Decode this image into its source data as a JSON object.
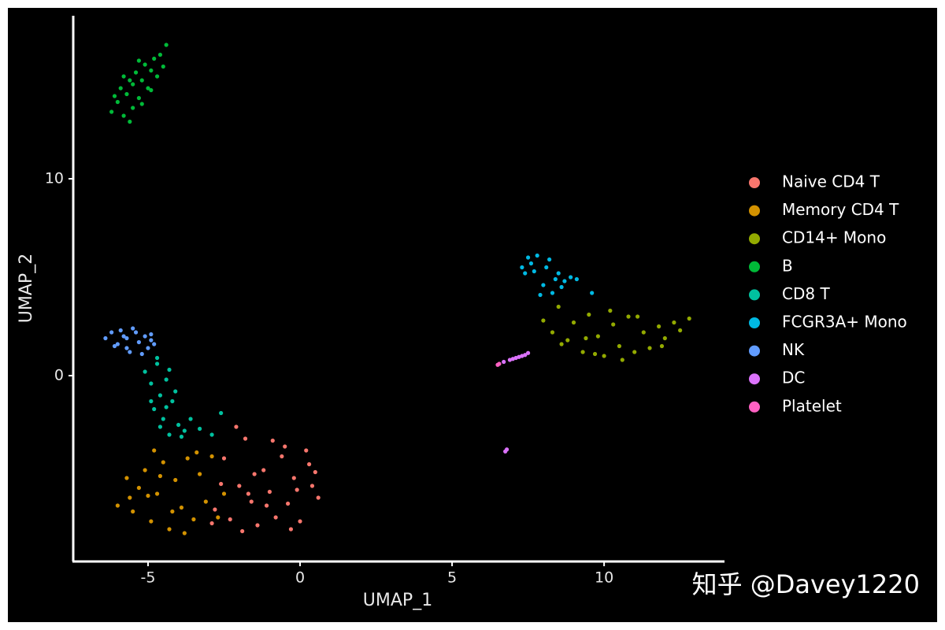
{
  "chart_data": {
    "type": "scatter",
    "x_label": "UMAP_1",
    "y_label": "UMAP_2",
    "xlim": [
      -7.46,
      13.96
    ],
    "ylim": [
      -9.44,
      18.28
    ],
    "xticks": [
      -5,
      0,
      5,
      10
    ],
    "yticks": [
      0,
      10
    ],
    "grid": false,
    "legend": "right",
    "watermark": "知乎 @Davey1220",
    "series": [
      {
        "name": "Naive CD4 T",
        "color": "#F8766D",
        "x": [
          -2.8,
          -2.5,
          -2.3,
          -2.0,
          -1.8,
          -1.6,
          -1.4,
          -1.2,
          -1.0,
          -0.8,
          -0.6,
          -0.4,
          -0.2,
          0.0,
          0.2,
          0.4,
          0.6,
          -2.6,
          -2.1,
          -1.5,
          -0.9,
          -0.3,
          0.3,
          -1.9,
          -1.1,
          -0.5,
          0.5,
          -2.9,
          -1.7,
          -0.1
        ],
        "y": [
          -6.8,
          -4.2,
          -7.3,
          -5.6,
          -3.2,
          -6.4,
          -7.6,
          -4.8,
          -5.9,
          -7.2,
          -4.1,
          -6.5,
          -5.2,
          -7.4,
          -3.8,
          -5.6,
          -6.2,
          -5.5,
          -2.6,
          -5.0,
          -3.3,
          -7.8,
          -4.5,
          -7.9,
          -6.6,
          -3.6,
          -4.9,
          -7.5,
          -6.0,
          -5.8
        ]
      },
      {
        "name": "Memory CD4 T",
        "color": "#D39200",
        "x": [
          -6.0,
          -5.7,
          -5.5,
          -5.3,
          -5.1,
          -4.9,
          -4.7,
          -4.5,
          -4.3,
          -4.1,
          -3.9,
          -3.7,
          -3.5,
          -3.3,
          -3.1,
          -2.9,
          -2.7,
          -5.6,
          -5.0,
          -4.6,
          -4.2,
          -3.8,
          -3.4,
          -2.5,
          -4.8
        ],
        "y": [
          -6.6,
          -5.2,
          -6.9,
          -5.7,
          -4.8,
          -7.4,
          -6.0,
          -4.4,
          -7.8,
          -5.3,
          -6.7,
          -4.2,
          -7.3,
          -5.0,
          -6.4,
          -4.1,
          -7.2,
          -6.2,
          -6.1,
          -5.1,
          -6.9,
          -8.0,
          -3.9,
          -6.0,
          -3.8
        ]
      },
      {
        "name": "CD14+ Mono",
        "color": "#93AA00",
        "x": [
          8.0,
          8.3,
          8.5,
          8.8,
          9.0,
          9.3,
          9.5,
          9.8,
          10.0,
          10.3,
          10.5,
          10.8,
          11.0,
          11.3,
          11.5,
          11.8,
          12.0,
          12.3,
          12.5,
          12.8,
          8.6,
          9.4,
          10.2,
          11.1,
          11.9,
          9.7,
          10.6
        ],
        "y": [
          2.8,
          2.2,
          3.5,
          1.8,
          2.7,
          1.2,
          3.1,
          2.0,
          1.0,
          2.6,
          1.5,
          3.0,
          1.2,
          2.2,
          1.4,
          2.5,
          1.9,
          2.7,
          2.3,
          2.9,
          1.6,
          1.9,
          3.3,
          3.0,
          1.5,
          1.1,
          0.8
        ]
      },
      {
        "name": "B",
        "color": "#00BA38",
        "x": [
          -6.2,
          -6.0,
          -5.9,
          -5.8,
          -5.7,
          -5.6,
          -5.5,
          -5.5,
          -5.4,
          -5.3,
          -5.2,
          -5.1,
          -5.0,
          -4.9,
          -4.8,
          -4.7,
          -4.6,
          -4.5,
          -4.4,
          -5.6,
          -5.2,
          -4.9,
          -6.1,
          -5.8,
          -5.3
        ],
        "y": [
          13.4,
          13.9,
          14.6,
          13.2,
          14.3,
          15.0,
          13.6,
          14.8,
          15.4,
          14.1,
          15.0,
          15.8,
          14.6,
          15.5,
          16.1,
          15.2,
          16.3,
          15.7,
          16.8,
          12.9,
          13.8,
          14.5,
          14.2,
          15.2,
          16.0
        ]
      },
      {
        "name": "CD8 T",
        "color": "#00C19F",
        "x": [
          -5.1,
          -4.9,
          -4.7,
          -4.6,
          -4.4,
          -4.3,
          -4.8,
          -4.5,
          -4.2,
          -4.0,
          -3.8,
          -4.6,
          -4.3,
          -3.6,
          -3.3,
          -2.9,
          -2.6,
          -4.9,
          -4.1,
          -3.9,
          -4.7,
          -4.4
        ],
        "y": [
          0.2,
          -0.4,
          0.6,
          -1.0,
          -0.2,
          0.3,
          -1.7,
          -2.2,
          -1.3,
          -2.5,
          -2.8,
          -2.6,
          -3.0,
          -2.2,
          -2.7,
          -3.0,
          -1.9,
          -1.3,
          -0.8,
          -3.1,
          0.9,
          -1.6
        ]
      },
      {
        "name": "FCGR3A+ Mono",
        "color": "#00B9E3",
        "x": [
          7.3,
          7.5,
          7.7,
          7.8,
          8.0,
          8.1,
          8.3,
          8.5,
          8.7,
          8.9,
          9.1,
          7.6,
          7.9,
          8.2,
          8.6,
          9.6,
          7.4,
          8.4
        ],
        "y": [
          5.5,
          6.0,
          5.3,
          6.1,
          4.6,
          5.5,
          4.2,
          5.2,
          4.8,
          5.0,
          4.9,
          5.7,
          4.1,
          5.9,
          4.5,
          4.2,
          5.2,
          4.9
        ]
      },
      {
        "name": "NK",
        "color": "#619CFF",
        "x": [
          -6.4,
          -6.2,
          -6.0,
          -5.9,
          -5.7,
          -5.6,
          -5.4,
          -5.3,
          -5.1,
          -5.0,
          -4.9,
          -4.8,
          -6.1,
          -5.8,
          -5.5,
          -5.2,
          -4.9,
          -5.7
        ],
        "y": [
          1.9,
          2.2,
          1.6,
          2.3,
          1.9,
          1.2,
          2.2,
          1.7,
          2.0,
          1.4,
          2.1,
          1.6,
          1.5,
          2.0,
          2.4,
          1.1,
          1.8,
          1.4
        ]
      },
      {
        "name": "DC",
        "color": "#DB72FB",
        "x": [
          6.7,
          6.9,
          7.0,
          7.1,
          7.2,
          7.3,
          7.4,
          7.5,
          6.8,
          6.75
        ],
        "y": [
          0.7,
          0.8,
          0.85,
          0.9,
          0.95,
          1.0,
          1.05,
          1.15,
          -3.75,
          -3.85
        ]
      },
      {
        "name": "Platelet",
        "color": "#FF61C3",
        "x": [
          6.5,
          6.55
        ],
        "y": [
          0.55,
          0.6
        ]
      }
    ]
  }
}
